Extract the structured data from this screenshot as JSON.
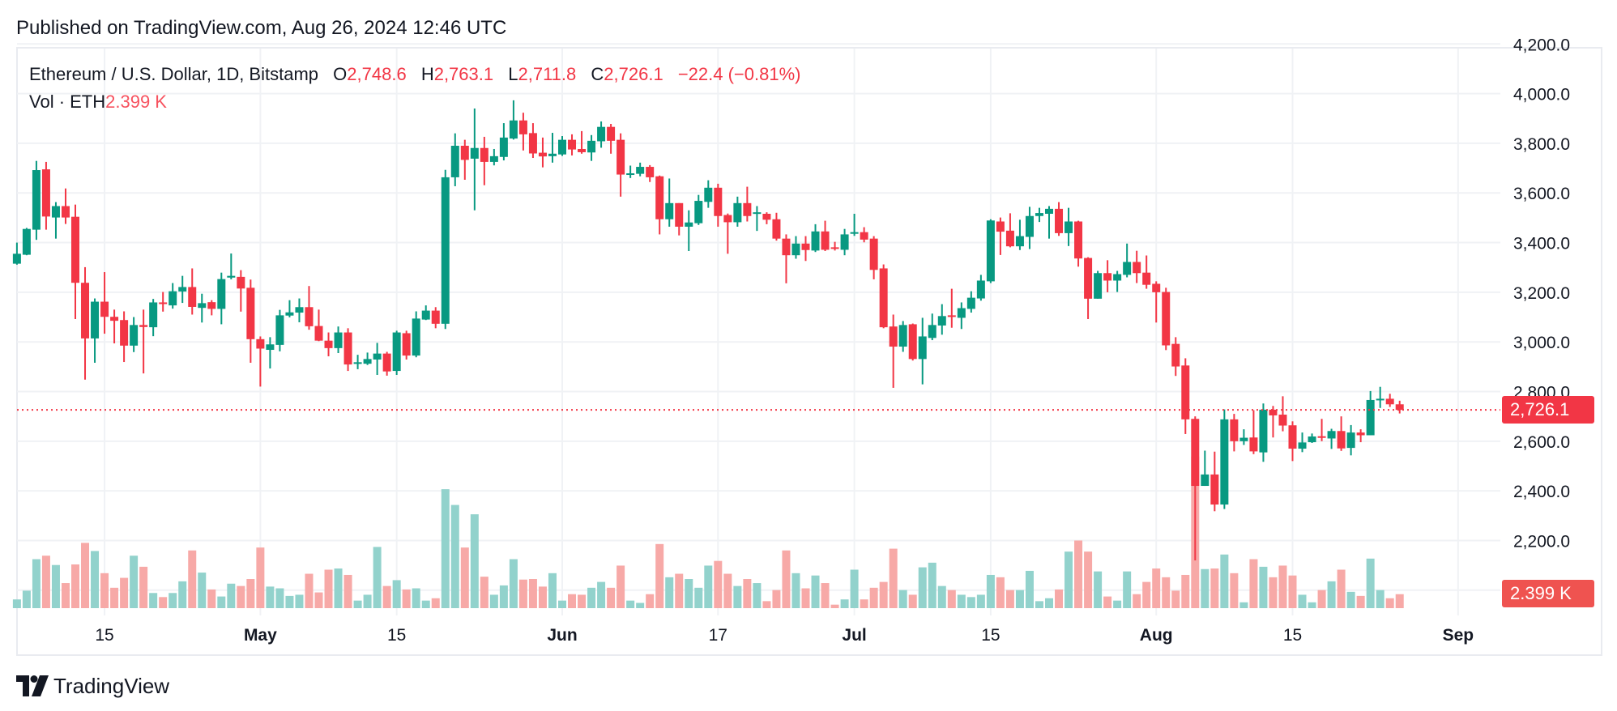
{
  "header": {
    "published": "Published on TradingView.com, Aug 26, 2024 12:46 UTC"
  },
  "legend": {
    "symbol": "Ethereum / U.S. Dollar, 1D, Bitstamp",
    "o_label": "O",
    "o_value": "2,748.6",
    "h_label": "H",
    "h_value": "2,763.1",
    "l_label": "L",
    "l_value": "2,711.8",
    "c_label": "C",
    "c_value": "2,726.1",
    "change": "−22.4 (−0.81%)",
    "vol_label": "Vol · ETH",
    "vol_value": "2.399 K"
  },
  "badges": {
    "last_price": "2,726.1",
    "last_volume": "2.399 K"
  },
  "footer": {
    "logo_text": "TradingView"
  },
  "colors": {
    "up": "#089981",
    "down": "#f23645",
    "volume_up": "#92d2cc",
    "volume_down": "#f7a9a7",
    "grid": "#f0f2f5",
    "last_price_line": "#f23645"
  },
  "chart_data": {
    "type": "candlestick",
    "symbol": "ETH/USD",
    "interval": "1D",
    "exchange": "Bitstamp",
    "ylim": [
      2000,
      4200
    ],
    "grid": true,
    "price_ticks": [
      {
        "value": 4200,
        "label": "4,200.0"
      },
      {
        "value": 4000,
        "label": "4,000.0"
      },
      {
        "value": 3800,
        "label": "3,800.0"
      },
      {
        "value": 3600,
        "label": "3,600.0"
      },
      {
        "value": 3400,
        "label": "3,400.0"
      },
      {
        "value": 3200,
        "label": "3,200.0"
      },
      {
        "value": 3000,
        "label": "3,000.0"
      },
      {
        "value": 2800,
        "label": "2,800.0"
      },
      {
        "value": 2600,
        "label": "2,600.0"
      },
      {
        "value": 2400,
        "label": "2,400.0"
      },
      {
        "value": 2200,
        "label": "2,200.0"
      }
    ],
    "time_ticks": [
      {
        "date": "2024-04-15",
        "label": "15",
        "bold": false
      },
      {
        "date": "2024-05-01",
        "label": "May",
        "bold": true
      },
      {
        "date": "2024-05-15",
        "label": "15",
        "bold": false
      },
      {
        "date": "2024-06-01",
        "label": "Jun",
        "bold": true
      },
      {
        "date": "2024-06-17",
        "label": "17",
        "bold": false
      },
      {
        "date": "2024-07-01",
        "label": "Jul",
        "bold": true
      },
      {
        "date": "2024-07-15",
        "label": "15",
        "bold": false
      },
      {
        "date": "2024-08-01",
        "label": "Aug",
        "bold": true
      },
      {
        "date": "2024-08-15",
        "label": "15",
        "bold": false
      },
      {
        "date": "2024-09-01",
        "label": "Sep",
        "bold": true
      }
    ],
    "last_price": 2726.1,
    "volume_unit": "K ETH",
    "columns": [
      "date",
      "open",
      "high",
      "low",
      "close",
      "volume"
    ],
    "candles": [
      [
        "2024-04-06",
        3315,
        3400,
        3311,
        3355,
        1.5
      ],
      [
        "2024-04-07",
        3351,
        3459,
        3349,
        3455,
        3.0
      ],
      [
        "2024-04-08",
        3452,
        3729,
        3411,
        3692,
        8.4
      ],
      [
        "2024-04-09",
        3695,
        3725,
        3452,
        3505,
        9.0
      ],
      [
        "2024-04-10",
        3501,
        3563,
        3416,
        3547,
        7.4
      ],
      [
        "2024-04-11",
        3547,
        3618,
        3475,
        3501,
        4.3
      ],
      [
        "2024-04-12",
        3504,
        3553,
        3092,
        3238,
        7.5
      ],
      [
        "2024-04-13",
        3238,
        3301,
        2848,
        3014,
        11.2
      ],
      [
        "2024-04-14",
        3014,
        3175,
        2916,
        3162,
        9.8
      ],
      [
        "2024-04-15",
        3162,
        3281,
        3033,
        3101,
        6.0
      ],
      [
        "2024-04-16",
        3101,
        3130,
        2994,
        3085,
        3.5
      ],
      [
        "2024-04-17",
        3088,
        3123,
        2919,
        2985,
        5.2
      ],
      [
        "2024-04-18",
        2985,
        3100,
        2959,
        3068,
        9.0
      ],
      [
        "2024-04-19",
        3068,
        3130,
        2873,
        3060,
        7.1
      ],
      [
        "2024-04-20",
        3059,
        3173,
        3023,
        3159,
        2.6
      ],
      [
        "2024-04-21",
        3159,
        3201,
        3122,
        3153,
        1.9
      ],
      [
        "2024-04-22",
        3147,
        3237,
        3134,
        3204,
        2.6
      ],
      [
        "2024-04-23",
        3203,
        3266,
        3157,
        3221,
        4.6
      ],
      [
        "2024-04-24",
        3221,
        3296,
        3110,
        3141,
        9.9
      ],
      [
        "2024-04-25",
        3137,
        3194,
        3078,
        3156,
        6.1
      ],
      [
        "2024-04-26",
        3160,
        3168,
        3107,
        3133,
        3.2
      ],
      [
        "2024-04-27",
        3133,
        3279,
        3071,
        3253,
        2.0
      ],
      [
        "2024-04-28",
        3259,
        3356,
        3252,
        3266,
        4.2
      ],
      [
        "2024-04-29",
        3262,
        3289,
        3122,
        3215,
        3.8
      ],
      [
        "2024-04-30",
        3218,
        3251,
        2916,
        3011,
        5.0
      ],
      [
        "2024-05-01",
        3011,
        3022,
        2820,
        2973,
        10.4
      ],
      [
        "2024-05-02",
        2968,
        3019,
        2893,
        2990,
        3.7
      ],
      [
        "2024-05-03",
        2988,
        3129,
        2962,
        3107,
        3.4
      ],
      [
        "2024-05-04",
        3106,
        3168,
        3099,
        3119,
        2.1
      ],
      [
        "2024-05-05",
        3118,
        3175,
        3079,
        3140,
        2.3
      ],
      [
        "2024-05-06",
        3140,
        3225,
        3049,
        3063,
        5.9
      ],
      [
        "2024-05-07",
        3064,
        3130,
        3003,
        3005,
        2.7
      ],
      [
        "2024-05-08",
        3005,
        3038,
        2942,
        2975,
        6.6
      ],
      [
        "2024-05-09",
        2975,
        3062,
        2955,
        3038,
        6.8
      ],
      [
        "2024-05-10",
        3038,
        3055,
        2883,
        2909,
        5.7
      ],
      [
        "2024-05-11",
        2912,
        2948,
        2890,
        2918,
        1.3
      ],
      [
        "2024-05-12",
        2912,
        2957,
        2907,
        2931,
        2.3
      ],
      [
        "2024-05-13",
        2929,
        2996,
        2867,
        2953,
        10.5
      ],
      [
        "2024-05-14",
        2953,
        2960,
        2864,
        2881,
        3.8
      ],
      [
        "2024-05-15",
        2883,
        3045,
        2867,
        3038,
        4.8
      ],
      [
        "2024-05-16",
        3035,
        3045,
        2929,
        2945,
        3.2
      ],
      [
        "2024-05-17",
        2945,
        3123,
        2938,
        3094,
        3.4
      ],
      [
        "2024-05-18",
        3090,
        3147,
        3088,
        3126,
        1.3
      ],
      [
        "2024-05-19",
        3126,
        3140,
        3055,
        3073,
        1.7
      ],
      [
        "2024-05-20",
        3073,
        3693,
        3052,
        3663,
        20.4
      ],
      [
        "2024-05-21",
        3663,
        3840,
        3627,
        3790,
        17.7
      ],
      [
        "2024-05-22",
        3790,
        3814,
        3653,
        3733,
        10.4
      ],
      [
        "2024-05-23",
        3738,
        3940,
        3530,
        3781,
        16.1
      ],
      [
        "2024-05-24",
        3781,
        3826,
        3631,
        3725,
        5.4
      ],
      [
        "2024-05-25",
        3725,
        3777,
        3711,
        3748,
        2.3
      ],
      [
        "2024-05-26",
        3745,
        3881,
        3731,
        3823,
        3.9
      ],
      [
        "2024-05-27",
        3819,
        3973,
        3815,
        3892,
        8.4
      ],
      [
        "2024-05-28",
        3892,
        3923,
        3771,
        3836,
        4.9
      ],
      [
        "2024-05-29",
        3841,
        3881,
        3741,
        3759,
        5.0
      ],
      [
        "2024-05-30",
        3762,
        3823,
        3703,
        3747,
        3.7
      ],
      [
        "2024-05-31",
        3748,
        3842,
        3722,
        3758,
        6.0
      ],
      [
        "2024-06-01",
        3755,
        3829,
        3749,
        3814,
        1.3
      ],
      [
        "2024-06-02",
        3814,
        3836,
        3751,
        3775,
        2.4
      ],
      [
        "2024-06-03",
        3777,
        3849,
        3758,
        3764,
        2.3
      ],
      [
        "2024-06-04",
        3763,
        3833,
        3729,
        3810,
        3.5
      ],
      [
        "2024-06-05",
        3808,
        3888,
        3782,
        3866,
        4.5
      ],
      [
        "2024-06-06",
        3866,
        3878,
        3758,
        3810,
        3.5
      ],
      [
        "2024-06-07",
        3814,
        3840,
        3585,
        3674,
        7.3
      ],
      [
        "2024-06-08",
        3674,
        3710,
        3660,
        3679,
        1.3
      ],
      [
        "2024-06-09",
        3677,
        3722,
        3667,
        3705,
        0.9
      ],
      [
        "2024-06-10",
        3705,
        3712,
        3644,
        3663,
        2.4
      ],
      [
        "2024-06-11",
        3667,
        3670,
        3433,
        3494,
        11.0
      ],
      [
        "2024-06-12",
        3494,
        3658,
        3464,
        3559,
        5.3
      ],
      [
        "2024-06-13",
        3559,
        3559,
        3429,
        3464,
        5.9
      ],
      [
        "2024-06-14",
        3464,
        3530,
        3366,
        3481,
        5.0
      ],
      [
        "2024-06-15",
        3478,
        3592,
        3471,
        3568,
        3.5
      ],
      [
        "2024-06-16",
        3564,
        3651,
        3540,
        3621,
        7.3
      ],
      [
        "2024-06-17",
        3621,
        3637,
        3464,
        3507,
        8.1
      ],
      [
        "2024-06-18",
        3511,
        3517,
        3355,
        3482,
        5.9
      ],
      [
        "2024-06-19",
        3482,
        3585,
        3464,
        3559,
        3.8
      ],
      [
        "2024-06-20",
        3559,
        3625,
        3485,
        3507,
        5.0
      ],
      [
        "2024-06-21",
        3518,
        3547,
        3447,
        3522,
        4.3
      ],
      [
        "2024-06-22",
        3516,
        3522,
        3474,
        3492,
        1.2
      ],
      [
        "2024-06-23",
        3494,
        3520,
        3408,
        3416,
        3.1
      ],
      [
        "2024-06-24",
        3416,
        3433,
        3236,
        3349,
        9.9
      ],
      [
        "2024-06-25",
        3349,
        3426,
        3335,
        3396,
        6.0
      ],
      [
        "2024-06-26",
        3396,
        3426,
        3326,
        3370,
        3.4
      ],
      [
        "2024-06-27",
        3368,
        3474,
        3362,
        3445,
        5.6
      ],
      [
        "2024-06-28",
        3445,
        3488,
        3366,
        3371,
        4.3
      ],
      [
        "2024-06-29",
        3381,
        3403,
        3368,
        3375,
        0.6
      ],
      [
        "2024-06-30",
        3371,
        3455,
        3349,
        3433,
        1.5
      ],
      [
        "2024-07-01",
        3436,
        3516,
        3427,
        3442,
        6.6
      ],
      [
        "2024-07-02",
        3442,
        3462,
        3401,
        3412,
        1.5
      ],
      [
        "2024-07-03",
        3416,
        3426,
        3252,
        3290,
        3.5
      ],
      [
        "2024-07-04",
        3296,
        3312,
        3055,
        3059,
        4.5
      ],
      [
        "2024-07-05",
        3062,
        3110,
        2815,
        2981,
        10.2
      ],
      [
        "2024-07-06",
        2981,
        3084,
        2960,
        3068,
        3.1
      ],
      [
        "2024-07-07",
        3071,
        3074,
        2925,
        2931,
        2.3
      ],
      [
        "2024-07-08",
        2931,
        3097,
        2829,
        3022,
        7.0
      ],
      [
        "2024-07-09",
        3016,
        3114,
        3007,
        3068,
        7.8
      ],
      [
        "2024-07-10",
        3066,
        3152,
        3029,
        3104,
        3.8
      ],
      [
        "2024-07-11",
        3107,
        3214,
        3057,
        3101,
        3.1
      ],
      [
        "2024-07-12",
        3097,
        3159,
        3052,
        3136,
        2.3
      ],
      [
        "2024-07-13",
        3133,
        3204,
        3118,
        3178,
        1.9
      ],
      [
        "2024-07-14",
        3175,
        3270,
        3166,
        3247,
        2.3
      ],
      [
        "2024-07-15",
        3244,
        3494,
        3237,
        3489,
        5.7
      ],
      [
        "2024-07-16",
        3485,
        3501,
        3350,
        3444,
        5.3
      ],
      [
        "2024-07-17",
        3448,
        3518,
        3381,
        3385,
        3.1
      ],
      [
        "2024-07-18",
        3385,
        3492,
        3370,
        3426,
        3.1
      ],
      [
        "2024-07-19",
        3423,
        3544,
        3374,
        3507,
        6.4
      ],
      [
        "2024-07-20",
        3507,
        3540,
        3483,
        3519,
        1.2
      ],
      [
        "2024-07-21",
        3516,
        3547,
        3416,
        3536,
        1.7
      ],
      [
        "2024-07-22",
        3536,
        3563,
        3427,
        3438,
        3.2
      ],
      [
        "2024-07-23",
        3438,
        3540,
        3386,
        3485,
        9.7
      ],
      [
        "2024-07-24",
        3485,
        3488,
        3303,
        3336,
        11.6
      ],
      [
        "2024-07-25",
        3338,
        3341,
        3092,
        3174,
        9.7
      ],
      [
        "2024-07-26",
        3174,
        3286,
        3174,
        3277,
        6.3
      ],
      [
        "2024-07-27",
        3277,
        3329,
        3200,
        3247,
        2.0
      ],
      [
        "2024-07-28",
        3247,
        3286,
        3201,
        3273,
        1.3
      ],
      [
        "2024-07-29",
        3270,
        3396,
        3260,
        3322,
        6.3
      ],
      [
        "2024-07-30",
        3322,
        3367,
        3237,
        3277,
        2.4
      ],
      [
        "2024-07-31",
        3279,
        3348,
        3214,
        3230,
        4.5
      ],
      [
        "2024-08-01",
        3234,
        3244,
        3078,
        3200,
        6.8
      ],
      [
        "2024-08-02",
        3201,
        3218,
        2967,
        2986,
        5.3
      ],
      [
        "2024-08-03",
        2992,
        3019,
        2863,
        2901,
        3.0
      ],
      [
        "2024-08-04",
        2905,
        2934,
        2629,
        2688,
        5.7
      ],
      [
        "2024-08-05",
        2690,
        2700,
        2120,
        2420,
        26.0
      ],
      [
        "2024-08-06",
        2420,
        2562,
        2420,
        2466,
        6.7
      ],
      [
        "2024-08-07",
        2466,
        2558,
        2318,
        2345,
        6.8
      ],
      [
        "2024-08-08",
        2345,
        2728,
        2327,
        2688,
        9.2
      ],
      [
        "2024-08-09",
        2688,
        2710,
        2559,
        2600,
        6.0
      ],
      [
        "2024-08-10",
        2600,
        2648,
        2585,
        2614,
        1.0
      ],
      [
        "2024-08-11",
        2615,
        2725,
        2548,
        2559,
        8.4
      ],
      [
        "2024-08-12",
        2555,
        2752,
        2517,
        2727,
        7.1
      ],
      [
        "2024-08-13",
        2727,
        2742,
        2615,
        2704,
        5.3
      ],
      [
        "2024-08-14",
        2707,
        2781,
        2640,
        2663,
        7.3
      ],
      [
        "2024-08-15",
        2664,
        2680,
        2520,
        2570,
        5.6
      ],
      [
        "2024-08-16",
        2570,
        2635,
        2556,
        2595,
        2.3
      ],
      [
        "2024-08-17",
        2596,
        2631,
        2593,
        2619,
        1.0
      ],
      [
        "2024-08-18",
        2620,
        2690,
        2600,
        2615,
        3.1
      ],
      [
        "2024-08-19",
        2611,
        2650,
        2569,
        2641,
        4.6
      ],
      [
        "2024-08-20",
        2641,
        2700,
        2561,
        2571,
        6.6
      ],
      [
        "2024-08-21",
        2573,
        2665,
        2543,
        2635,
        2.8
      ],
      [
        "2024-08-22",
        2635,
        2648,
        2596,
        2624,
        2.1
      ],
      [
        "2024-08-23",
        2624,
        2802,
        2624,
        2766,
        8.5
      ],
      [
        "2024-08-24",
        2766,
        2819,
        2734,
        2771,
        3.1
      ],
      [
        "2024-08-25",
        2771,
        2791,
        2738,
        2748.6,
        1.7
      ],
      [
        "2024-08-26",
        2748.6,
        2763.1,
        2711.8,
        2726.1,
        2.399
      ]
    ]
  }
}
